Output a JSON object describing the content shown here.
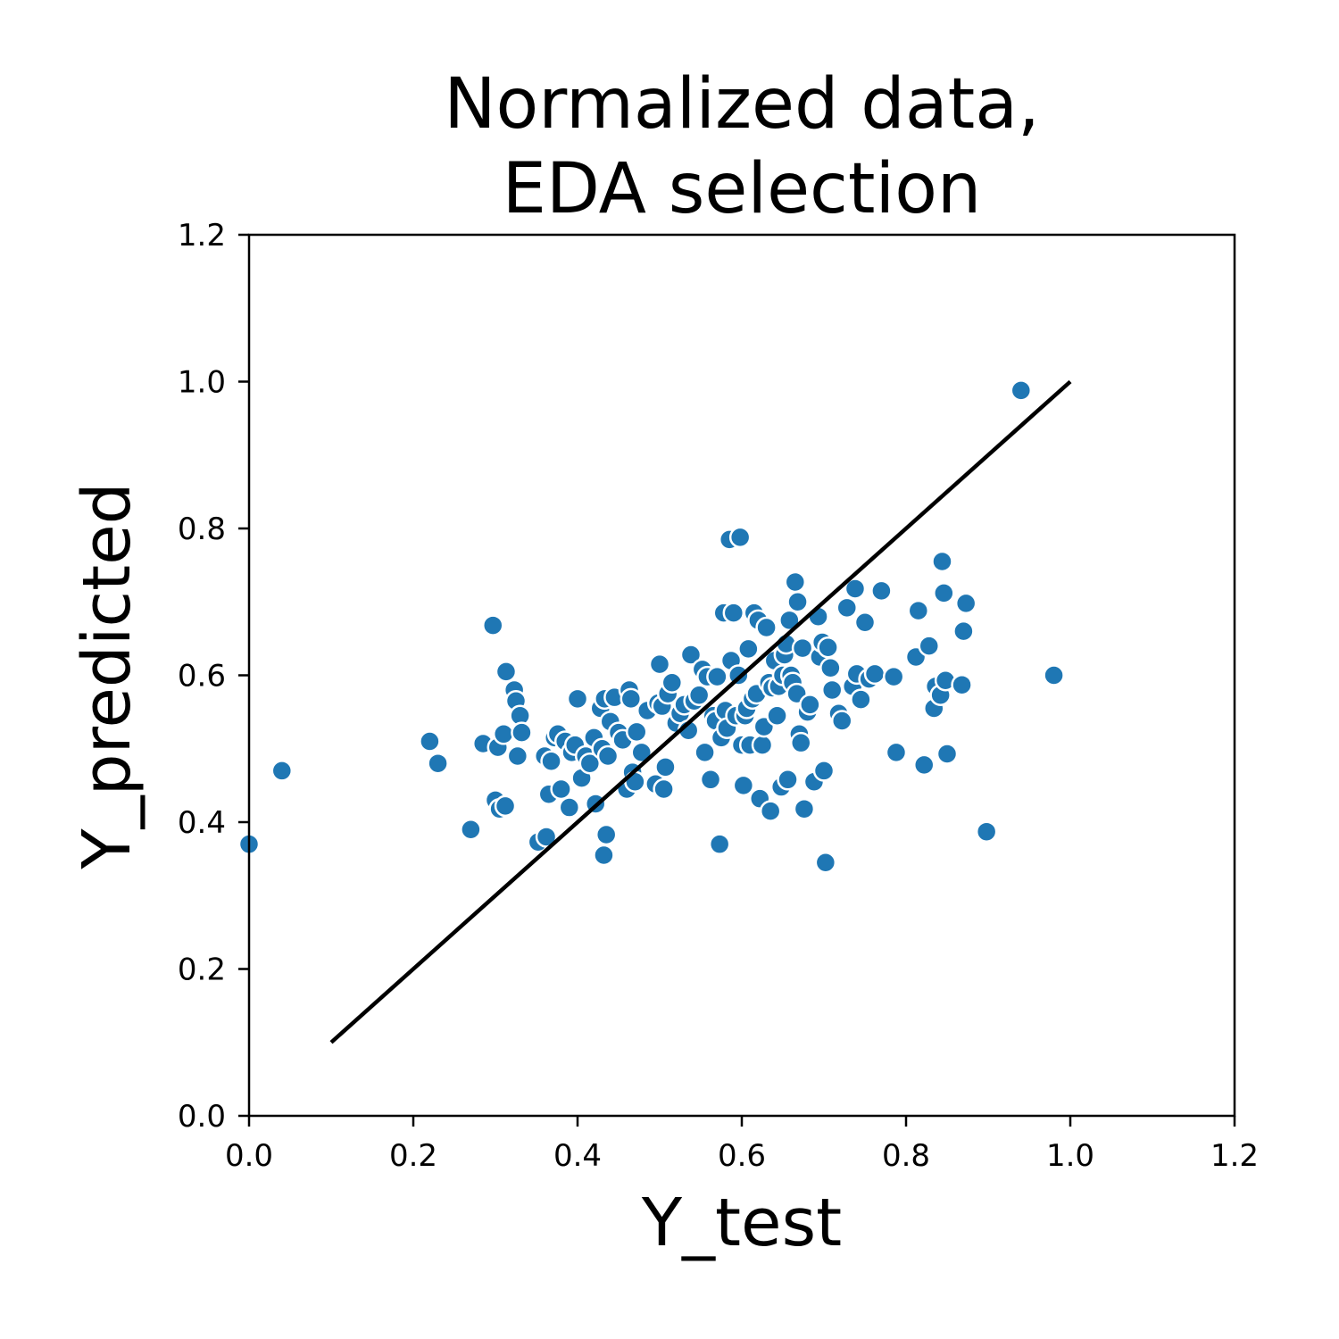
{
  "chart_data": {
    "type": "scatter",
    "title": [
      "Normalized data,",
      "EDA selection"
    ],
    "xlabel": "Y_test",
    "ylabel": "Y_predicted",
    "xlim": [
      0.0,
      1.2
    ],
    "ylim": [
      0.0,
      1.2
    ],
    "x_ticks": [
      "0.0",
      "0.2",
      "0.4",
      "0.6",
      "0.8",
      "1.0",
      "1.2"
    ],
    "y_ticks": [
      "0.0",
      "0.2",
      "0.4",
      "0.6",
      "0.8",
      "1.0",
      "1.2"
    ],
    "grid": false,
    "legend": "none",
    "marker_color": "#1f77b4",
    "reference_line": {
      "x": [
        0.1,
        1.0
      ],
      "y": [
        0.1,
        1.0
      ],
      "color": "#000000"
    },
    "points": [
      [
        0.0,
        0.37
      ],
      [
        0.04,
        0.47
      ],
      [
        0.22,
        0.51
      ],
      [
        0.23,
        0.48
      ],
      [
        0.27,
        0.39
      ],
      [
        0.285,
        0.507
      ],
      [
        0.297,
        0.668
      ],
      [
        0.3,
        0.43
      ],
      [
        0.303,
        0.502
      ],
      [
        0.305,
        0.418
      ],
      [
        0.31,
        0.52
      ],
      [
        0.312,
        0.422
      ],
      [
        0.313,
        0.605
      ],
      [
        0.323,
        0.58
      ],
      [
        0.325,
        0.565
      ],
      [
        0.327,
        0.49
      ],
      [
        0.33,
        0.545
      ],
      [
        0.332,
        0.522
      ],
      [
        0.352,
        0.373
      ],
      [
        0.36,
        0.49
      ],
      [
        0.362,
        0.38
      ],
      [
        0.365,
        0.438
      ],
      [
        0.368,
        0.483
      ],
      [
        0.372,
        0.515
      ],
      [
        0.376,
        0.52
      ],
      [
        0.38,
        0.445
      ],
      [
        0.385,
        0.51
      ],
      [
        0.39,
        0.42
      ],
      [
        0.393,
        0.495
      ],
      [
        0.397,
        0.505
      ],
      [
        0.4,
        0.568
      ],
      [
        0.405,
        0.46
      ],
      [
        0.41,
        0.49
      ],
      [
        0.415,
        0.48
      ],
      [
        0.42,
        0.515
      ],
      [
        0.422,
        0.425
      ],
      [
        0.428,
        0.555
      ],
      [
        0.43,
        0.5
      ],
      [
        0.432,
        0.355
      ],
      [
        0.433,
        0.568
      ],
      [
        0.435,
        0.383
      ],
      [
        0.437,
        0.49
      ],
      [
        0.44,
        0.537
      ],
      [
        0.445,
        0.57
      ],
      [
        0.45,
        0.522
      ],
      [
        0.455,
        0.512
      ],
      [
        0.46,
        0.445
      ],
      [
        0.463,
        0.58
      ],
      [
        0.465,
        0.568
      ],
      [
        0.467,
        0.468
      ],
      [
        0.47,
        0.455
      ],
      [
        0.472,
        0.523
      ],
      [
        0.478,
        0.495
      ],
      [
        0.485,
        0.552
      ],
      [
        0.495,
        0.452
      ],
      [
        0.498,
        0.562
      ],
      [
        0.5,
        0.615
      ],
      [
        0.503,
        0.558
      ],
      [
        0.505,
        0.445
      ],
      [
        0.507,
        0.475
      ],
      [
        0.51,
        0.575
      ],
      [
        0.515,
        0.59
      ],
      [
        0.52,
        0.535
      ],
      [
        0.525,
        0.548
      ],
      [
        0.53,
        0.56
      ],
      [
        0.535,
        0.525
      ],
      [
        0.538,
        0.628
      ],
      [
        0.542,
        0.565
      ],
      [
        0.548,
        0.573
      ],
      [
        0.552,
        0.608
      ],
      [
        0.555,
        0.495
      ],
      [
        0.558,
        0.598
      ],
      [
        0.562,
        0.458
      ],
      [
        0.565,
        0.545
      ],
      [
        0.568,
        0.538
      ],
      [
        0.57,
        0.598
      ],
      [
        0.573,
        0.37
      ],
      [
        0.575,
        0.515
      ],
      [
        0.578,
        0.685
      ],
      [
        0.58,
        0.552
      ],
      [
        0.582,
        0.528
      ],
      [
        0.585,
        0.785
      ],
      [
        0.587,
        0.62
      ],
      [
        0.59,
        0.685
      ],
      [
        0.593,
        0.545
      ],
      [
        0.596,
        0.6
      ],
      [
        0.598,
        0.788
      ],
      [
        0.6,
        0.505
      ],
      [
        0.602,
        0.45
      ],
      [
        0.604,
        0.545
      ],
      [
        0.606,
        0.555
      ],
      [
        0.608,
        0.636
      ],
      [
        0.61,
        0.505
      ],
      [
        0.613,
        0.568
      ],
      [
        0.615,
        0.685
      ],
      [
        0.618,
        0.575
      ],
      [
        0.62,
        0.675
      ],
      [
        0.622,
        0.432
      ],
      [
        0.625,
        0.505
      ],
      [
        0.627,
        0.53
      ],
      [
        0.63,
        0.665
      ],
      [
        0.633,
        0.59
      ],
      [
        0.635,
        0.415
      ],
      [
        0.637,
        0.583
      ],
      [
        0.64,
        0.62
      ],
      [
        0.643,
        0.545
      ],
      [
        0.645,
        0.585
      ],
      [
        0.648,
        0.448
      ],
      [
        0.65,
        0.6
      ],
      [
        0.652,
        0.628
      ],
      [
        0.654,
        0.643
      ],
      [
        0.656,
        0.458
      ],
      [
        0.658,
        0.675
      ],
      [
        0.66,
        0.6
      ],
      [
        0.662,
        0.59
      ],
      [
        0.665,
        0.727
      ],
      [
        0.667,
        0.575
      ],
      [
        0.668,
        0.7
      ],
      [
        0.67,
        0.52
      ],
      [
        0.672,
        0.508
      ],
      [
        0.674,
        0.637
      ],
      [
        0.676,
        0.418
      ],
      [
        0.68,
        0.55
      ],
      [
        0.683,
        0.56
      ],
      [
        0.688,
        0.455
      ],
      [
        0.693,
        0.68
      ],
      [
        0.695,
        0.625
      ],
      [
        0.698,
        0.645
      ],
      [
        0.7,
        0.47
      ],
      [
        0.702,
        0.345
      ],
      [
        0.705,
        0.638
      ],
      [
        0.708,
        0.61
      ],
      [
        0.71,
        0.58
      ],
      [
        0.718,
        0.548
      ],
      [
        0.722,
        0.538
      ],
      [
        0.728,
        0.692
      ],
      [
        0.735,
        0.585
      ],
      [
        0.738,
        0.718
      ],
      [
        0.74,
        0.602
      ],
      [
        0.745,
        0.567
      ],
      [
        0.75,
        0.672
      ],
      [
        0.755,
        0.595
      ],
      [
        0.762,
        0.602
      ],
      [
        0.77,
        0.715
      ],
      [
        0.785,
        0.598
      ],
      [
        0.788,
        0.495
      ],
      [
        0.812,
        0.625
      ],
      [
        0.815,
        0.688
      ],
      [
        0.822,
        0.478
      ],
      [
        0.828,
        0.64
      ],
      [
        0.834,
        0.555
      ],
      [
        0.836,
        0.585
      ],
      [
        0.842,
        0.573
      ],
      [
        0.844,
        0.755
      ],
      [
        0.846,
        0.712
      ],
      [
        0.848,
        0.593
      ],
      [
        0.85,
        0.493
      ],
      [
        0.868,
        0.587
      ],
      [
        0.87,
        0.66
      ],
      [
        0.873,
        0.698
      ],
      [
        0.898,
        0.387
      ],
      [
        0.94,
        0.988
      ],
      [
        0.98,
        0.6
      ]
    ]
  }
}
